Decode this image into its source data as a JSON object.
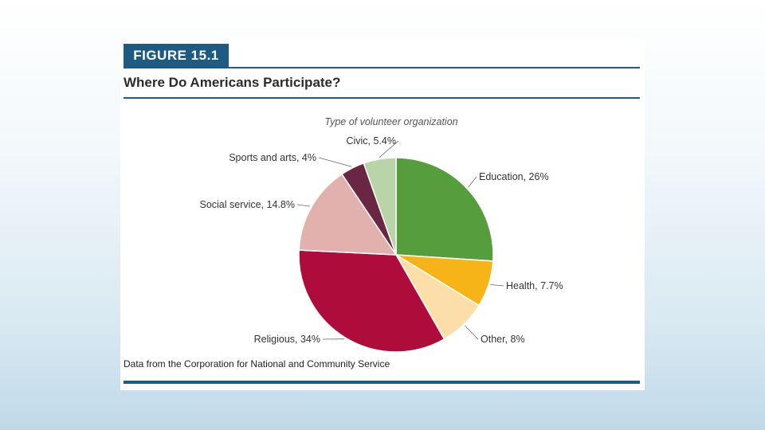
{
  "figure_label": "FIGURE 15.1",
  "source_note": "Data from the Corporation for National and Community Service",
  "chart_data": {
    "type": "pie",
    "title": "Where Do Americans Participate?",
    "subtitle": "Type of volunteer organization",
    "start": "12 o'clock, clockwise",
    "slices": [
      {
        "label": "Education",
        "value": 26,
        "display": "Education, 26%",
        "color": "#569d3d"
      },
      {
        "label": "Health",
        "value": 7.7,
        "display": "Health, 7.7%",
        "color": "#f6b418"
      },
      {
        "label": "Other",
        "value": 8,
        "display": "Other, 8%",
        "color": "#fcdfa8"
      },
      {
        "label": "Religious",
        "value": 34,
        "display": "Religious, 34%",
        "color": "#ae0c3a"
      },
      {
        "label": "Social service",
        "value": 14.8,
        "display": "Social service, 14.8%",
        "color": "#e2b1ae"
      },
      {
        "label": "Sports and arts",
        "value": 4,
        "display": "Sports and arts, 4%",
        "color": "#6a2744"
      },
      {
        "label": "Civic",
        "value": 5.4,
        "display": "Civic, 5.4%",
        "color": "#b8d4a8"
      }
    ]
  }
}
